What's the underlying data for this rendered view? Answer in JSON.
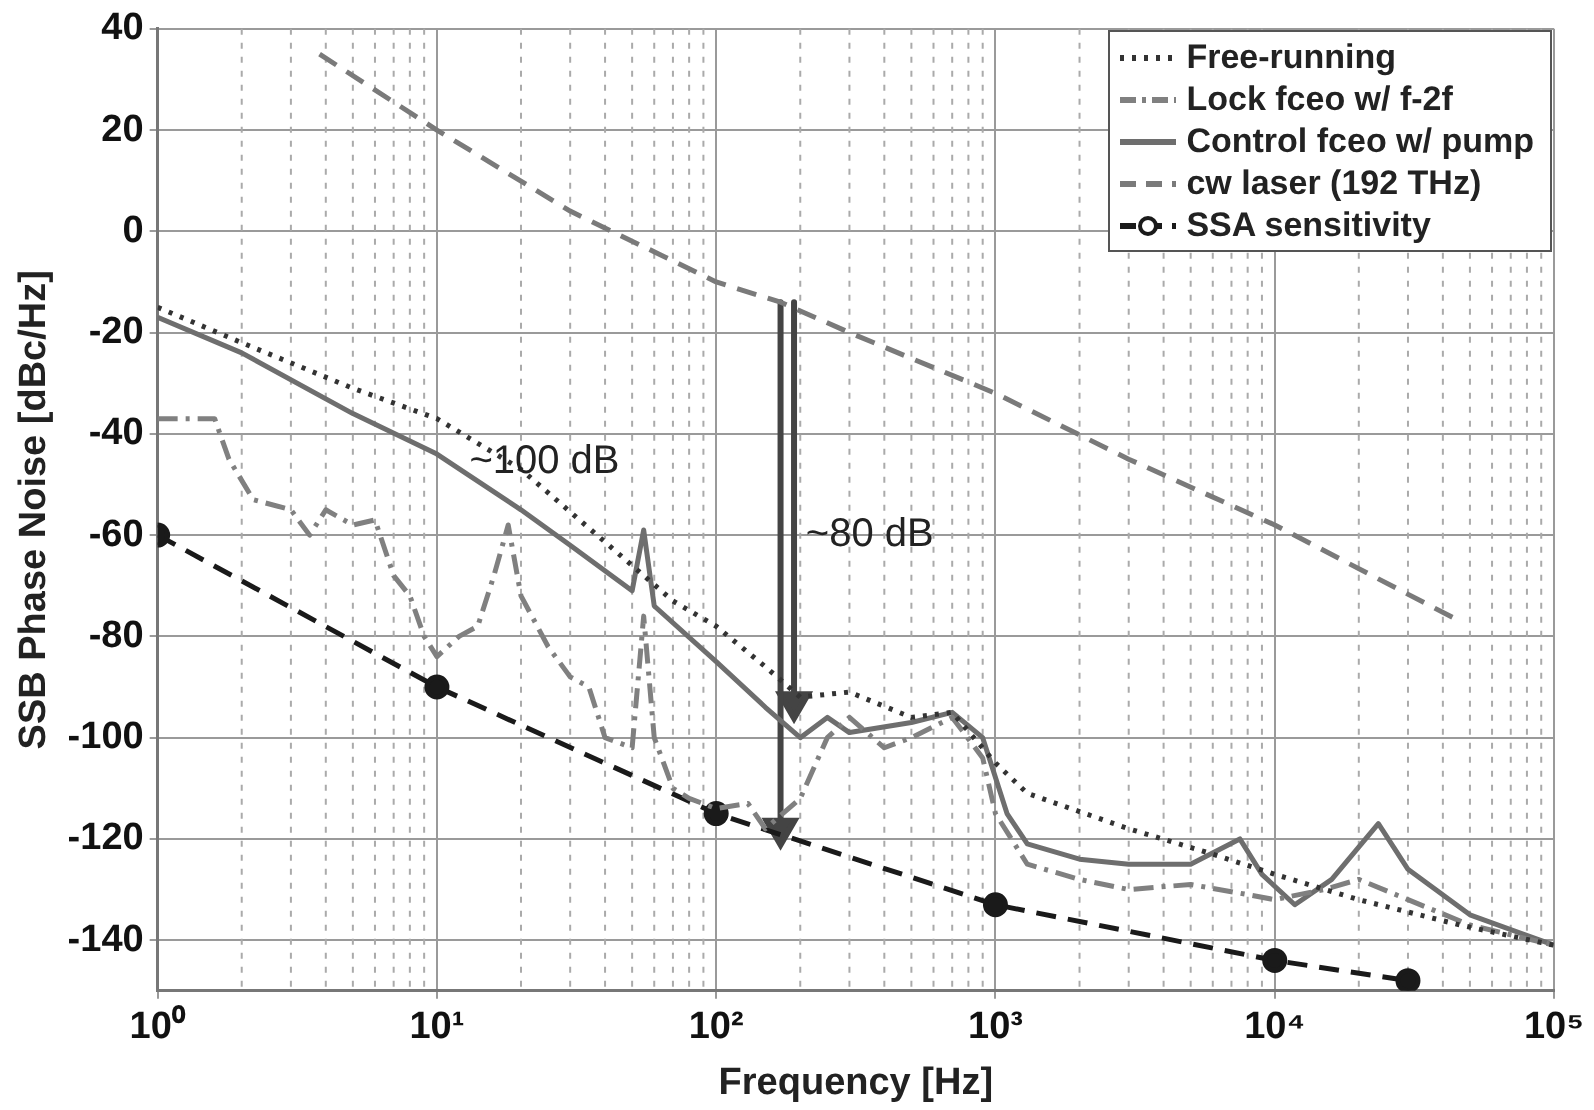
{
  "chart_data": {
    "type": "line",
    "xlabel": "Frequency [Hz]",
    "ylabel": "SSB Phase Noise [dBc/Hz]",
    "log": "x",
    "xlim": [
      1,
      100000
    ],
    "ylim": [
      -150,
      40
    ],
    "xticks": [
      {
        "value": 1,
        "label": "10⁰"
      },
      {
        "value": 10,
        "label": "10¹"
      },
      {
        "value": 100,
        "label": "10²"
      },
      {
        "value": 1000,
        "label": "10³"
      },
      {
        "value": 10000,
        "label": "10⁴"
      },
      {
        "value": 100000,
        "label": "10⁵"
      }
    ],
    "yticks": [
      -140,
      -120,
      -100,
      -80,
      -60,
      -40,
      -20,
      0,
      20,
      40
    ],
    "grid": true,
    "legend": "top right",
    "annotations": [
      "~100 dB",
      "~80 dB"
    ],
    "series": [
      {
        "name": "Free-running",
        "color": "#333333",
        "line_style": "dotted",
        "marker": "none",
        "x": [
          1,
          2,
          5,
          10,
          20,
          50,
          70,
          100,
          150,
          200,
          300,
          500,
          700,
          1000,
          1300,
          3000,
          6000,
          10000,
          20000,
          46000,
          100000
        ],
        "values": [
          -15,
          -22,
          -31,
          -37,
          -47,
          -66,
          -73,
          -78,
          -86,
          -92,
          -91,
          -96,
          -95,
          -105,
          -111,
          -118,
          -123,
          -127,
          -132,
          -137,
          -141
        ]
      },
      {
        "name": "Lock fceo w/ f-2f",
        "color": "#808080",
        "line_style": "dashdot",
        "marker": "none",
        "x": [
          1,
          1.6,
          1.8,
          2.2,
          3,
          3.5,
          4,
          5,
          6,
          7,
          8,
          9,
          10,
          12,
          14,
          16,
          18,
          20,
          25,
          30,
          35,
          40,
          50,
          55,
          60,
          70,
          80,
          100,
          130,
          150,
          200,
          250,
          300,
          400,
          500,
          700,
          900,
          1000,
          1300,
          2000,
          3000,
          5000,
          8000,
          10000,
          15000,
          20000,
          30000,
          50000,
          100000
        ],
        "values": [
          -37,
          -37,
          -45,
          -53,
          -55,
          -60,
          -55,
          -58,
          -57,
          -68,
          -72,
          -80,
          -84,
          -80,
          -78,
          -68,
          -58,
          -72,
          -82,
          -88,
          -90,
          -100,
          -102,
          -76,
          -100,
          -110,
          -112,
          -114,
          -113,
          -118,
          -112,
          -100,
          -96,
          -102,
          -100,
          -96,
          -104,
          -115,
          -125,
          -128,
          -130,
          -129,
          -131,
          -132,
          -130,
          -128,
          -132,
          -137,
          -141
        ]
      },
      {
        "name": "Control fceo w/ pump",
        "color": "#6e6e6e",
        "line_style": "solid",
        "marker": "none",
        "x": [
          1,
          2,
          5,
          10,
          20,
          30,
          50,
          55,
          60,
          100,
          150,
          200,
          250,
          300,
          500,
          700,
          900,
          1100,
          1300,
          2000,
          3000,
          5000,
          7500,
          9000,
          11800,
          16000,
          23500,
          30000,
          50000,
          100000
        ],
        "values": [
          -17,
          -24,
          -36,
          -44,
          -55,
          -62,
          -71,
          -59,
          -74,
          -85,
          -94,
          -100,
          -96,
          -99,
          -97,
          -95,
          -100,
          -115,
          -121,
          -124,
          -125,
          -125,
          -120,
          -127,
          -133,
          -128,
          -117,
          -126,
          -135,
          -141
        ]
      },
      {
        "name": "cw laser (192 THz)",
        "color": "#7a7a7a",
        "line_style": "dashed",
        "marker": "none",
        "x": [
          3.8,
          10,
          30,
          100,
          170,
          300,
          1000,
          3000,
          10000,
          46000
        ],
        "values": [
          35,
          20,
          4,
          -10,
          -14,
          -20,
          -32,
          -45,
          -58,
          -77
        ]
      },
      {
        "name": "SSA sensitivity",
        "color": "#1a1a1a",
        "line_style": "dashed",
        "marker": "circle",
        "x": [
          1,
          10,
          100,
          1000,
          10000,
          30000
        ],
        "values": [
          -60,
          -90,
          -115,
          -133,
          -144,
          -148
        ]
      },
      {
        "color": "#444444",
        "line_style": "solid",
        "marker": "triangle",
        "x": [
          170,
          170
        ],
        "values": [
          -14,
          -118
        ]
      },
      {
        "color": "#444444",
        "line_style": "solid",
        "marker": "triangle",
        "x": [
          190,
          190
        ],
        "values": [
          -14,
          -93
        ]
      }
    ]
  }
}
